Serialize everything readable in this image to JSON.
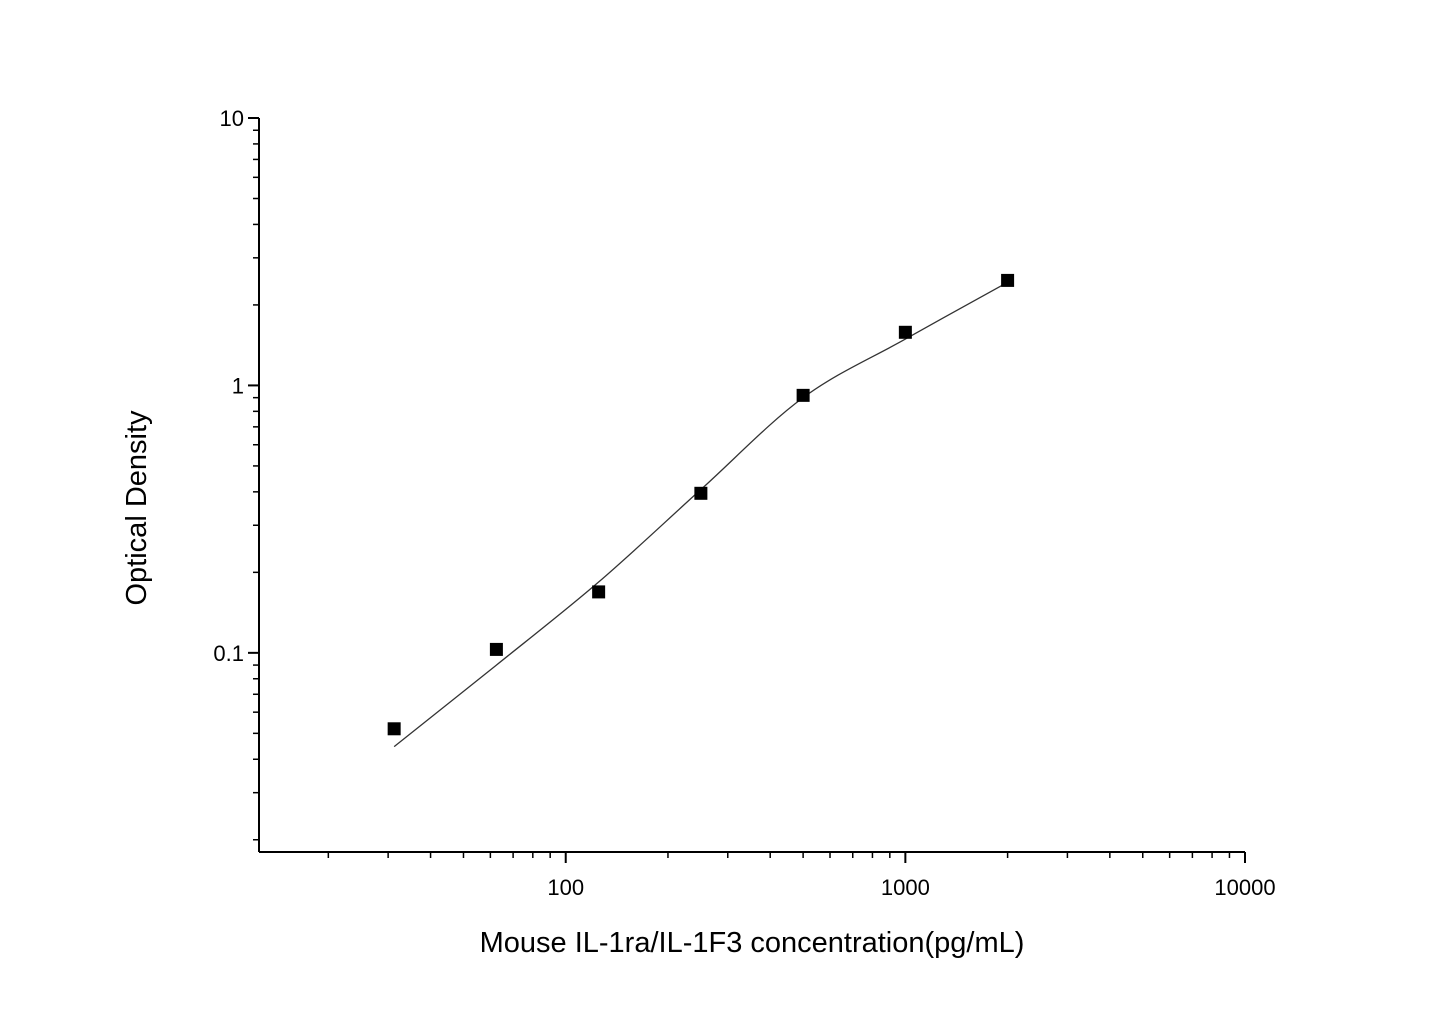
{
  "chart_data": {
    "type": "scatter",
    "x_label": "Mouse IL-1ra/IL-1F3 concentration(pg/mL)",
    "y_label": "Optical Density",
    "x": [
      31.25,
      62.5,
      125,
      250,
      500,
      1000,
      2000
    ],
    "series": [
      {
        "values": [
          0.052,
          0.103,
          0.169,
          0.395,
          0.918,
          1.58,
          2.47
        ],
        "color": "#000000",
        "marker": "square"
      },
      {
        "values": [
          0.0446,
          0.09,
          0.184,
          0.408,
          0.9,
          1.49,
          2.43
        ],
        "color": "#333333",
        "marker": "line"
      }
    ],
    "xscale": "log",
    "yscale": "log",
    "xlim": [
      12.5,
      10000
    ],
    "ylim": [
      0.018,
      10
    ],
    "xticks": [
      100,
      1000,
      10000
    ],
    "yticks": [
      0.1,
      1,
      10
    ],
    "xminorticks": [
      20,
      30,
      40,
      50,
      60,
      70,
      80,
      90,
      200,
      300,
      400,
      500,
      600,
      700,
      800,
      900,
      2000,
      3000,
      4000,
      5000,
      6000,
      7000,
      8000,
      9000
    ],
    "yminorticks": [
      0.02,
      0.03,
      0.04,
      0.05,
      0.06,
      0.07,
      0.08,
      0.09,
      0.2,
      0.3,
      0.4,
      0.5,
      0.6,
      0.7,
      0.8,
      0.9,
      2,
      3,
      4,
      5,
      6,
      7,
      8,
      9
    ],
    "grid": false
  }
}
